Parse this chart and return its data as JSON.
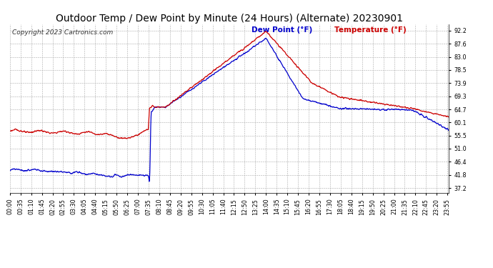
{
  "title": "Outdoor Temp / Dew Point by Minute (24 Hours) (Alternate) 20230901",
  "copyright": "Copyright 2023 Cartronics.com",
  "legend_dew": "Dew Point (°F)",
  "legend_temp": "Temperature (°F)",
  "yticks": [
    37.2,
    41.8,
    46.4,
    51.0,
    55.5,
    60.1,
    64.7,
    69.3,
    73.9,
    78.5,
    83.0,
    87.6,
    92.2
  ],
  "ylim": [
    35.5,
    94.5
  ],
  "temp_color": "#cc0000",
  "dew_color": "#0000cc",
  "bg_color": "#ffffff",
  "grid_color": "#aaaaaa",
  "title_fontsize": 10,
  "tick_fontsize": 5.8
}
